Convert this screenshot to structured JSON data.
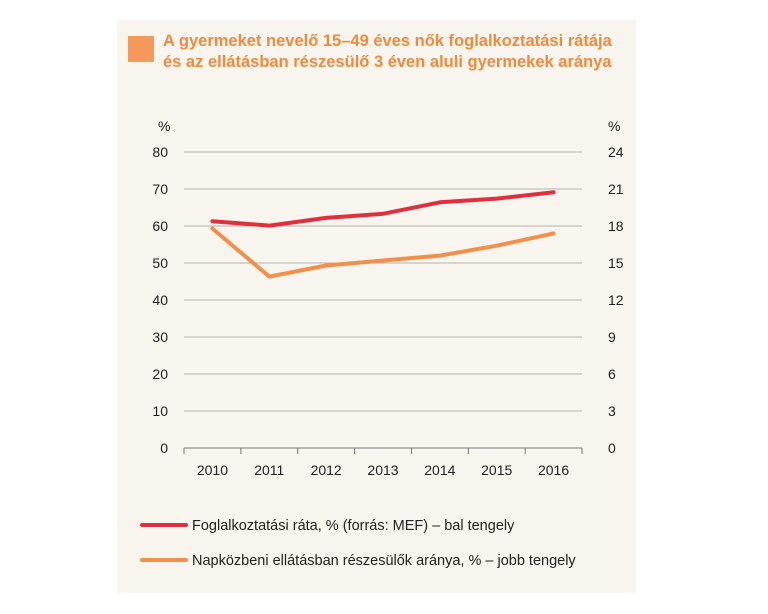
{
  "title": {
    "line1": "A gyermeket nevelő 15–49 éves nők foglalkoztatási rátája",
    "line2": "és az ellátásban részesülő 3 éven aluli gyermekek aránya"
  },
  "colors": {
    "panel": "#f8f4ee",
    "title": "#f08a3c",
    "marker": "#f4995a",
    "series_left": "#e0303b",
    "series_right": "#f0904a",
    "grid": "#b3b3b3"
  },
  "chart_data": {
    "type": "line",
    "x": [
      "2010",
      "2011",
      "2012",
      "2013",
      "2014",
      "2015",
      "2016"
    ],
    "y_left": {
      "unit_label": "%",
      "range": [
        0,
        80
      ],
      "ticks": [
        "0",
        "10",
        "20",
        "30",
        "40",
        "50",
        "60",
        "70",
        "80"
      ]
    },
    "y_right": {
      "unit_label": "%",
      "range": [
        0,
        24
      ],
      "ticks": [
        "0",
        "3",
        "6",
        "9",
        "12",
        "15",
        "18",
        "21",
        "24"
      ]
    },
    "grid": true,
    "legend_position": "bottom",
    "series": [
      {
        "name": "Foglalkoztatási ráta, % (forrás: MEF) – bal tengely",
        "axis": "left",
        "color": "#e0303b",
        "values": [
          61.3,
          60.1,
          62.2,
          63.3,
          66.4,
          67.4,
          69.1
        ]
      },
      {
        "name": "Napközbeni ellátásban részesülők aránya, % – jobb tengely",
        "axis": "right",
        "color": "#f0904a",
        "values": [
          17.8,
          13.9,
          14.8,
          15.2,
          15.6,
          16.4,
          17.4
        ]
      }
    ]
  }
}
